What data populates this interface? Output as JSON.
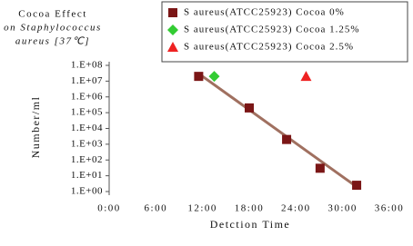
{
  "chart_data": {
    "type": "scatter",
    "title": [
      "Cocoa Effect",
      "on Staphylococcus",
      "aureus [37℃]"
    ],
    "x_label": "Detction Time",
    "y_label": "Number/ml",
    "xlim": [
      0,
      36
    ],
    "xticks": [
      {
        "value": 0,
        "label": "0:00"
      },
      {
        "value": 6,
        "label": "6:00"
      },
      {
        "value": 12,
        "label": "12:00"
      },
      {
        "value": 18,
        "label": "18:00"
      },
      {
        "value": 24,
        "label": "24:00"
      },
      {
        "value": 30,
        "label": "30:00"
      },
      {
        "value": 36,
        "label": "36:00"
      }
    ],
    "ylim": [
      1,
      100000000
    ],
    "log_y": true,
    "yticks": [
      {
        "value": 100000000,
        "label": "1.E+08"
      },
      {
        "value": 10000000,
        "label": "1.E+07"
      },
      {
        "value": 1000000,
        "label": "1.E+06"
      },
      {
        "value": 100000,
        "label": "1.E+05"
      },
      {
        "value": 10000,
        "label": "1.E+04"
      },
      {
        "value": 1000,
        "label": "1.E+03"
      },
      {
        "value": 100,
        "label": "1.E+02"
      },
      {
        "value": 10,
        "label": "1.E+01"
      },
      {
        "value": 1,
        "label": "1.E+00"
      }
    ],
    "series": [
      {
        "name": "S aureus(ATCC25923) Cocoa 0%",
        "color": "#7b1616",
        "marker": "square",
        "x": [
          11.5,
          18,
          22.8,
          27.1,
          31.8
        ],
        "values": [
          20000000,
          200000,
          2000,
          30,
          2.5
        ]
      },
      {
        "name": "S aureus(ATCC25923) Cocoa 1.25%",
        "color": "#33cc33",
        "marker": "diamond",
        "x": [
          13.5
        ],
        "values": [
          20000000
        ]
      },
      {
        "name": "S aureus(ATCC25923) Cocoa 2.5%",
        "color": "#ee2222",
        "marker": "triangle",
        "x": [
          25.3
        ],
        "values": [
          20000000
        ]
      }
    ],
    "trendline": {
      "color": "#a07060",
      "x": [
        11.5,
        31.8
      ],
      "values": [
        30000000,
        2
      ]
    }
  }
}
